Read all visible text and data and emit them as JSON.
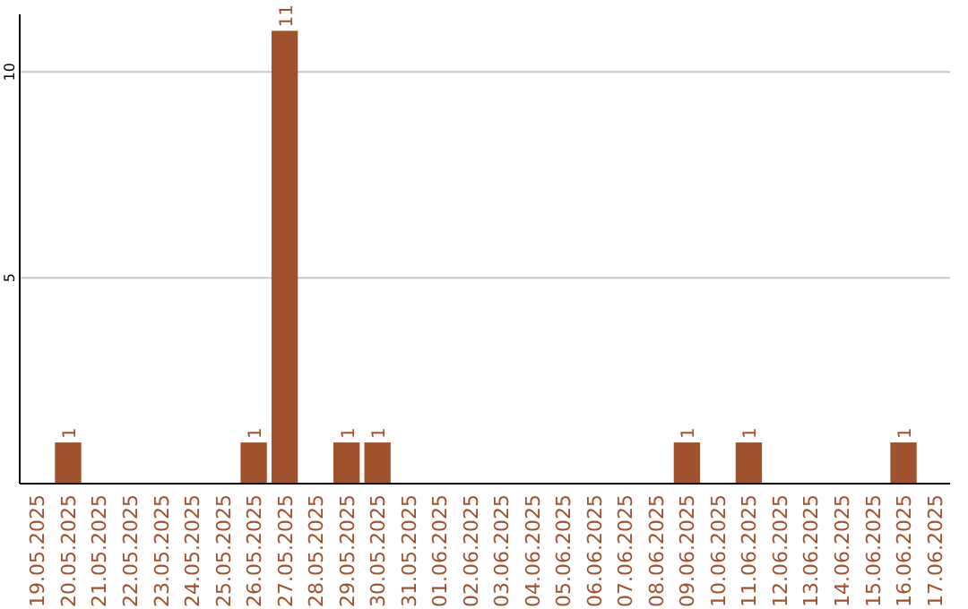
{
  "chart_data": {
    "type": "bar",
    "categories": [
      "19.05.2025",
      "20.05.2025",
      "21.05.2025",
      "22.05.2025",
      "23.05.2025",
      "24.05.2025",
      "25.05.2025",
      "26.05.2025",
      "27.05.2025",
      "28.05.2025",
      "29.05.2025",
      "30.05.2025",
      "31.05.2025",
      "01.06.2025",
      "02.06.2025",
      "03.06.2025",
      "04.06.2025",
      "05.06.2025",
      "06.06.2025",
      "07.06.2025",
      "08.06.2025",
      "09.06.2025",
      "10.06.2025",
      "11.06.2025",
      "12.06.2025",
      "13.06.2025",
      "14.06.2025",
      "15.06.2025",
      "16.06.2025",
      "17.06.2025"
    ],
    "values": [
      0,
      1,
      0,
      0,
      0,
      0,
      0,
      1,
      11,
      0,
      1,
      1,
      0,
      0,
      0,
      0,
      0,
      0,
      0,
      0,
      0,
      1,
      0,
      1,
      0,
      0,
      0,
      0,
      1,
      0
    ],
    "value_labels": [
      null,
      "1",
      null,
      null,
      null,
      null,
      null,
      "1",
      "11",
      null,
      "1",
      "1",
      null,
      null,
      null,
      null,
      null,
      null,
      null,
      null,
      null,
      "1",
      null,
      "1",
      null,
      null,
      null,
      null,
      "1",
      null
    ],
    "color": "#a0522d",
    "ylim": [
      0,
      11.4
    ],
    "yticks": [
      {
        "value": 0,
        "label": null
      },
      5,
      10
    ],
    "grid": "y"
  }
}
